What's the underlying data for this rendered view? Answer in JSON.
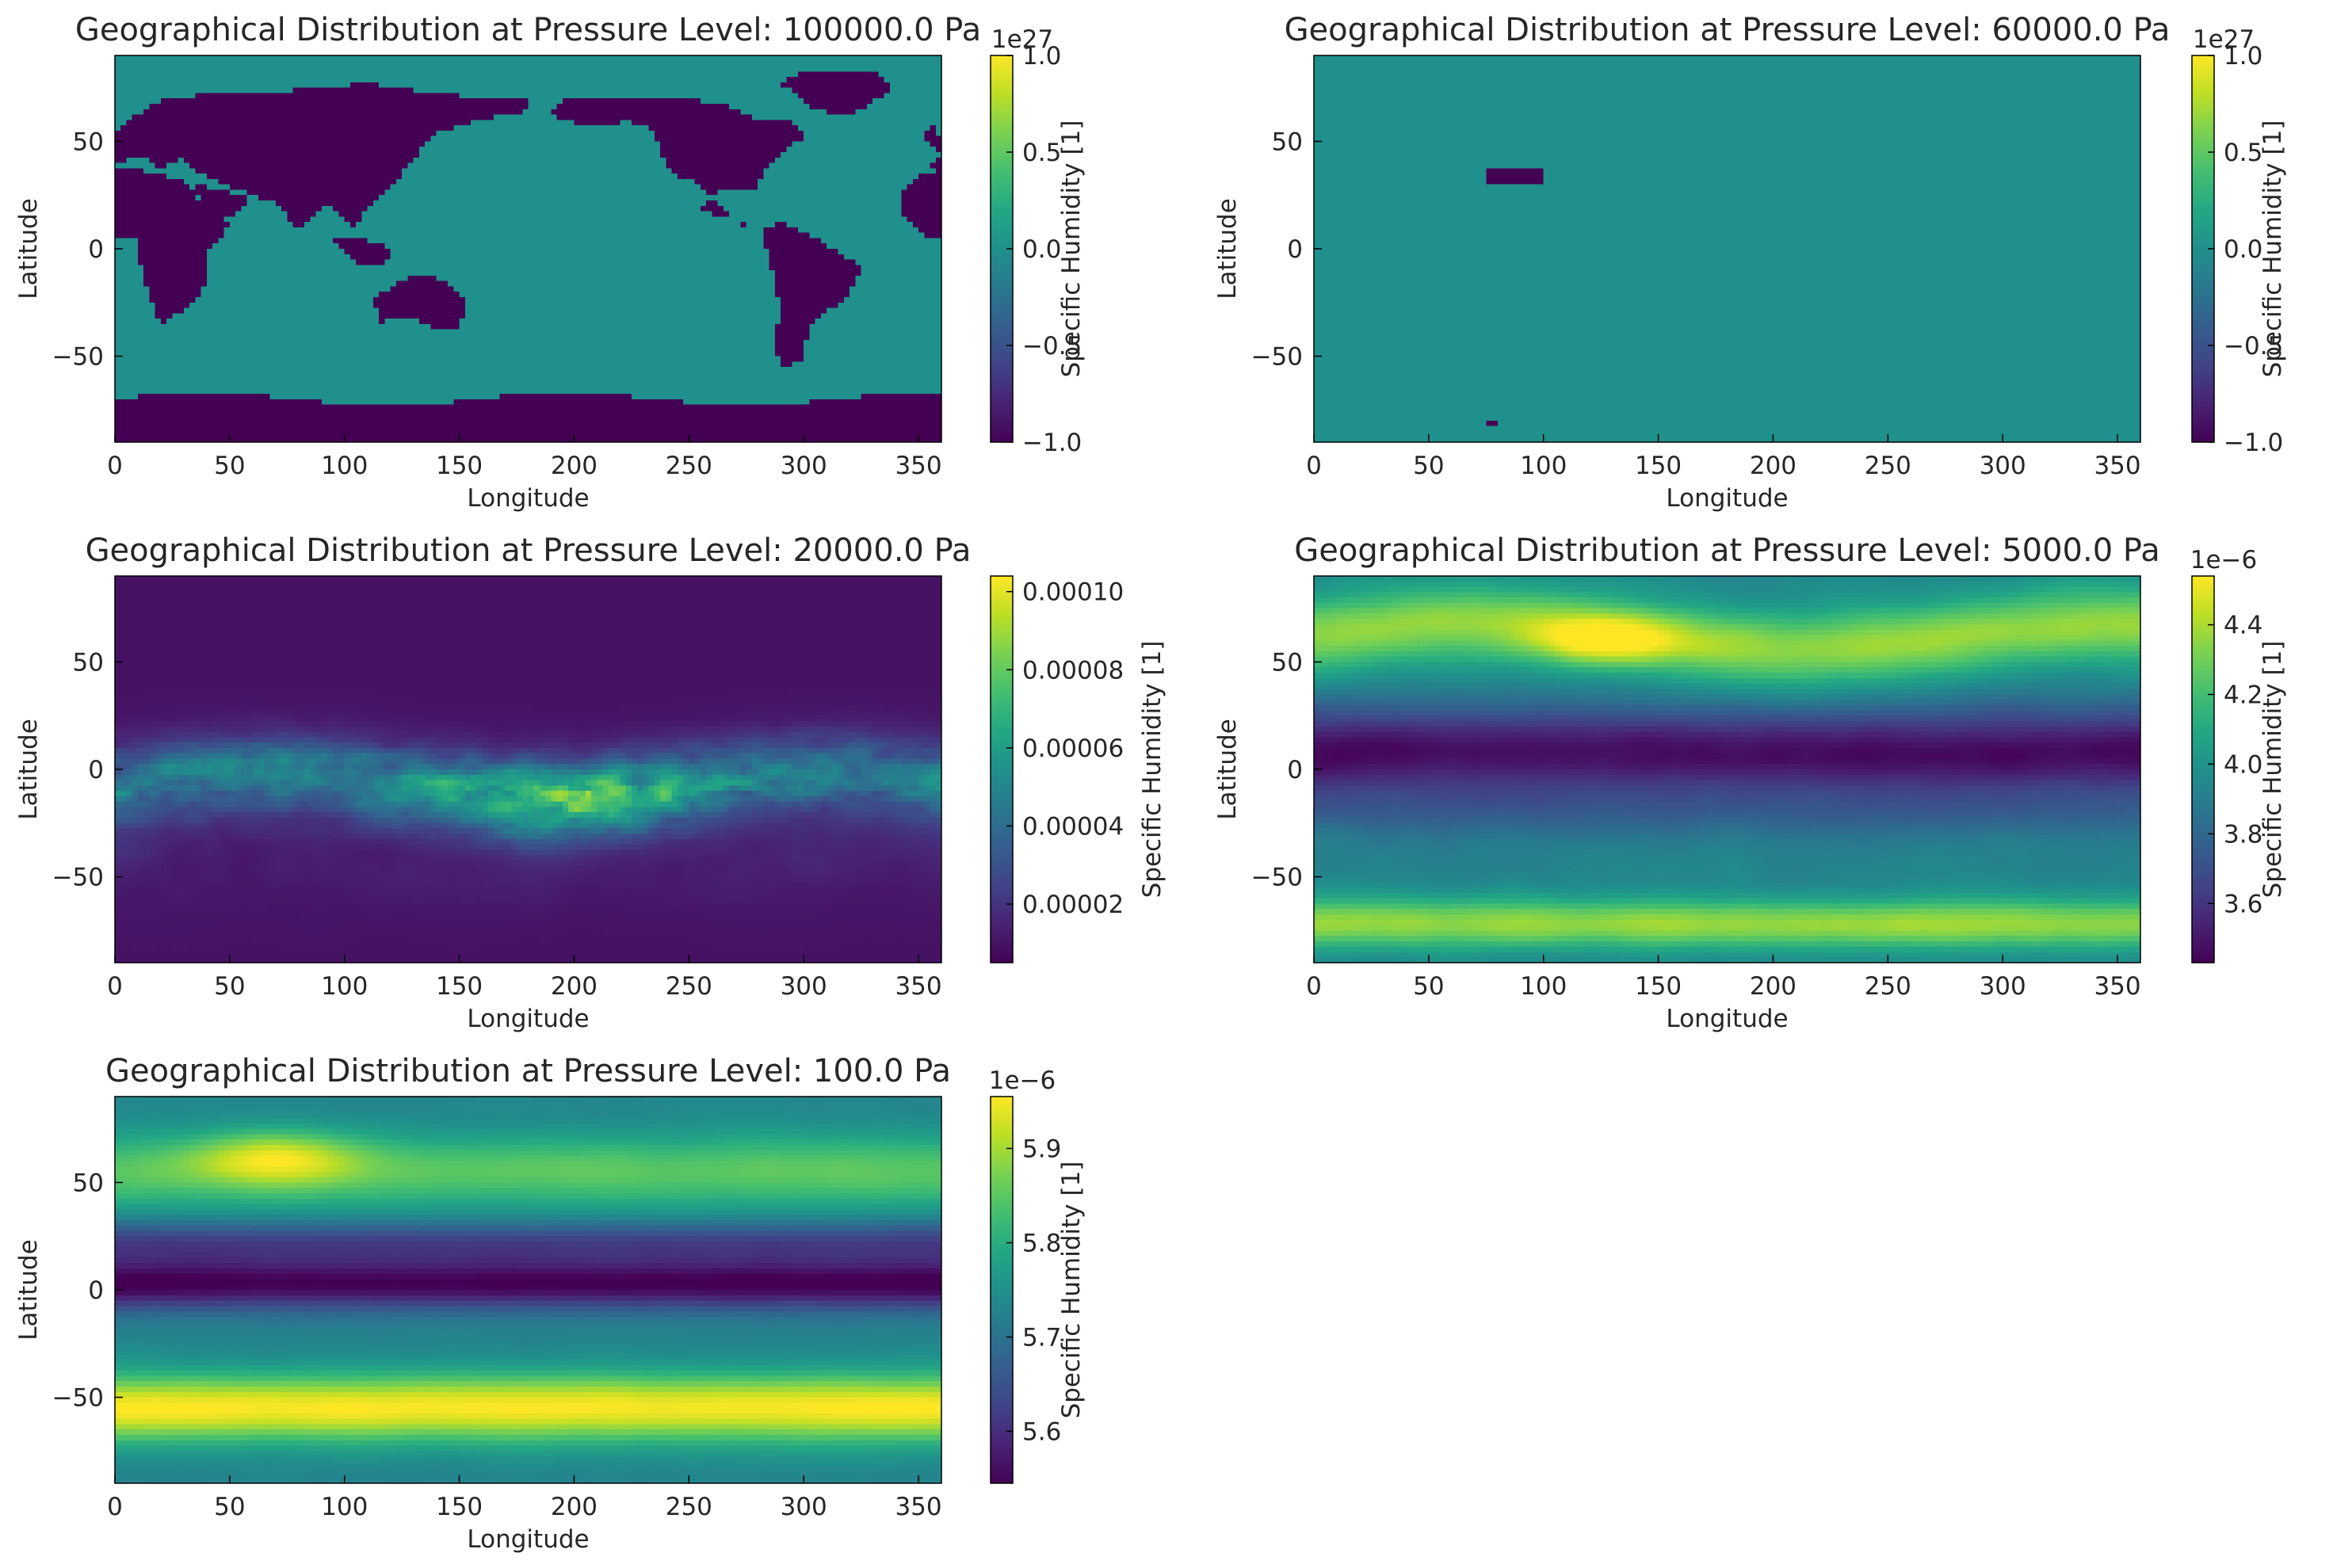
{
  "chart_data": [
    {
      "type": "heatmap",
      "title": "Geographical Distribution at Pressure Level: 100000.0 Pa",
      "xlabel": "Longitude",
      "ylabel": "Latitude",
      "colorbar_label": "Specific Humidity [1]",
      "colormap": "viridis",
      "xlim": [
        0,
        360
      ],
      "ylim": [
        -90,
        90
      ],
      "xticks": [
        0,
        50,
        100,
        150,
        200,
        250,
        300,
        350
      ],
      "xtick_labels": [
        "0",
        "50",
        "100",
        "150",
        "200",
        "250",
        "300",
        "350"
      ],
      "yticks": [
        -50,
        0,
        50
      ],
      "ytick_labels": [
        "−50",
        "0",
        "50"
      ],
      "clim": [
        -1.0,
        1.0
      ],
      "cbar_ticks": [
        -1.0,
        -0.5,
        0.0,
        0.5,
        1.0
      ],
      "cbar_tick_labels": [
        "−1.0",
        "−0.5",
        "0.0",
        "0.5",
        "1.0"
      ],
      "cbar_offset": "1e27",
      "pattern": "land-sea",
      "values": "land-sea mask: land ≈ -1e27 (fill), ocean ≈ 0"
    },
    {
      "type": "heatmap",
      "title": "Geographical Distribution at Pressure Level: 60000.0 Pa",
      "xlabel": "Longitude",
      "ylabel": "Latitude",
      "colorbar_label": "Specific Humidity [1]",
      "colormap": "viridis",
      "xlim": [
        0,
        360
      ],
      "ylim": [
        -90,
        90
      ],
      "xticks": [
        0,
        50,
        100,
        150,
        200,
        250,
        300,
        350
      ],
      "xtick_labels": [
        "0",
        "50",
        "100",
        "150",
        "200",
        "250",
        "300",
        "350"
      ],
      "yticks": [
        -50,
        0,
        50
      ],
      "ytick_labels": [
        "−50",
        "0",
        "50"
      ],
      "clim": [
        -1.0,
        1.0
      ],
      "cbar_ticks": [
        -1.0,
        -0.5,
        0.0,
        0.5,
        1.0
      ],
      "cbar_tick_labels": [
        "−1.0",
        "−0.5",
        "0.0",
        "0.5",
        "1.0"
      ],
      "cbar_offset": "1e27",
      "pattern": "uniform-with-tibet",
      "values": "≈ 0 everywhere; fill ≈ -1e27 over Tibetan Plateau (lon 75–100, lat 30–37)"
    },
    {
      "type": "heatmap",
      "title": "Geographical Distribution at Pressure Level: 20000.0 Pa",
      "xlabel": "Longitude",
      "ylabel": "Latitude",
      "colorbar_label": "Specific Humidity [1]",
      "colormap": "viridis",
      "xlim": [
        0,
        360
      ],
      "ylim": [
        -90,
        90
      ],
      "xticks": [
        0,
        50,
        100,
        150,
        200,
        250,
        300,
        350
      ],
      "xtick_labels": [
        "0",
        "50",
        "100",
        "150",
        "200",
        "250",
        "300",
        "350"
      ],
      "yticks": [
        -50,
        0,
        50
      ],
      "ytick_labels": [
        "−50",
        "0",
        "50"
      ],
      "clim": [
        5e-06,
        0.000104
      ],
      "cbar_ticks": [
        2e-05,
        4e-05,
        6e-05,
        8e-05,
        0.0001
      ],
      "cbar_tick_labels": [
        "0.00002",
        "0.00004",
        "0.00006",
        "0.00008",
        "0.00010"
      ],
      "cbar_offset": "",
      "pattern": "tropical-band",
      "values": "max ≈ 0.00010 near lat −5–5, lon 150–240; min ≈ 0.000005 at high latitudes"
    },
    {
      "type": "heatmap",
      "title": "Geographical Distribution at Pressure Level: 5000.0 Pa",
      "xlabel": "Longitude",
      "ylabel": "Latitude",
      "colorbar_label": "Specific Humidity [1]",
      "colormap": "viridis",
      "xlim": [
        0,
        360
      ],
      "ylim": [
        -90,
        90
      ],
      "xticks": [
        0,
        50,
        100,
        150,
        200,
        250,
        300,
        350
      ],
      "xtick_labels": [
        "0",
        "50",
        "100",
        "150",
        "200",
        "250",
        "300",
        "350"
      ],
      "yticks": [
        -50,
        0,
        50
      ],
      "ytick_labels": [
        "−50",
        "0",
        "50"
      ],
      "clim": [
        3.43,
        4.54
      ],
      "cbar_ticks": [
        3.6,
        3.8,
        4.0,
        4.2,
        4.4
      ],
      "cbar_tick_labels": [
        "3.6",
        "3.8",
        "4.0",
        "4.2",
        "4.4"
      ],
      "cbar_offset": "1e−6",
      "pattern": "strat-5000",
      "values": "min ≈ 3.43e-6 near equator; max ≈ 4.5e-6 at lat ~60N, lon ~120 and near 70–80S"
    },
    {
      "type": "heatmap",
      "title": "Geographical Distribution at Pressure Level: 100.0 Pa",
      "xlabel": "Longitude",
      "ylabel": "Latitude",
      "colorbar_label": "Specific Humidity [1]",
      "colormap": "viridis",
      "xlim": [
        0,
        360
      ],
      "ylim": [
        -90,
        90
      ],
      "xticks": [
        0,
        50,
        100,
        150,
        200,
        250,
        300,
        350
      ],
      "xtick_labels": [
        "0",
        "50",
        "100",
        "150",
        "200",
        "250",
        "300",
        "350"
      ],
      "yticks": [
        -50,
        0,
        50
      ],
      "ytick_labels": [
        "−50",
        "0",
        "50"
      ],
      "clim": [
        5.545,
        5.955
      ],
      "cbar_ticks": [
        5.6,
        5.7,
        5.8,
        5.9
      ],
      "cbar_tick_labels": [
        "5.6",
        "5.7",
        "5.8",
        "5.9"
      ],
      "cbar_offset": "1e−6",
      "pattern": "strat-100",
      "values": "min ≈ 5.55e-6 near lat 0–10; max ≈ 5.95e-6 near lat −50 and lat ~60N, lon ~60"
    }
  ]
}
